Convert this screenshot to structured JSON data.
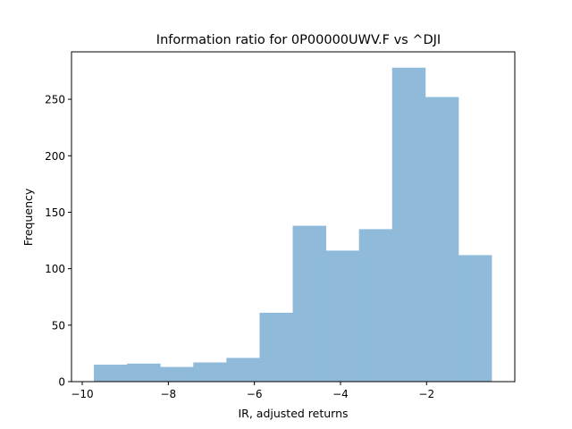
{
  "chart_data": {
    "type": "bar",
    "subtype": "histogram",
    "title": "Information ratio for 0P00000UWV.F vs ^DJI",
    "xlabel": "IR, adjusted returns",
    "ylabel": "Frequency",
    "xlim": [
      -10.25,
      0.05
    ],
    "ylim": [
      0,
      292
    ],
    "xticks": [
      -10,
      -8,
      -6,
      -4,
      -2
    ],
    "xtick_labels": [
      "−10",
      "−8",
      "−6",
      "−4",
      "−2"
    ],
    "yticks": [
      0,
      50,
      100,
      150,
      200,
      250
    ],
    "ytick_labels": [
      "0",
      "50",
      "100",
      "150",
      "200",
      "250"
    ],
    "bin_edges": [
      -9.73,
      -8.96,
      -8.19,
      -7.42,
      -6.65,
      -5.88,
      -5.11,
      -4.34,
      -3.57,
      -2.8,
      -2.03,
      -1.26,
      -0.49
    ],
    "values": [
      15,
      16,
      13,
      17,
      21,
      61,
      138,
      116,
      135,
      278,
      252,
      112
    ],
    "bar_color": "#8fbad9",
    "grid": false,
    "legend": "none"
  }
}
